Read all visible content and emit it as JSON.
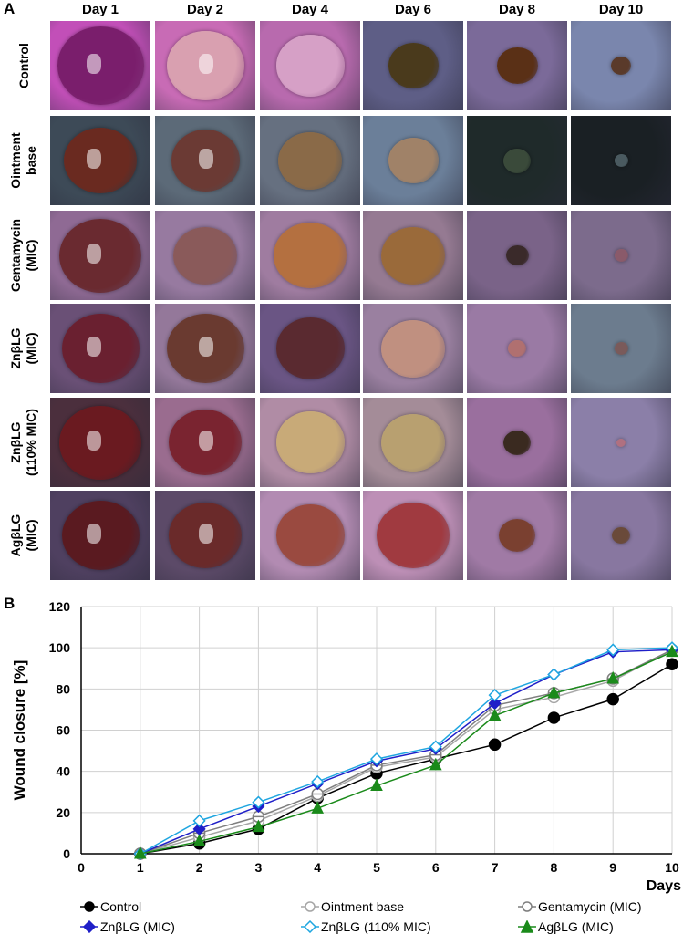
{
  "panel_a": {
    "label": "A",
    "days": [
      "Day 1",
      "Day 2",
      "Day 4",
      "Day 6",
      "Day 8",
      "Day 10"
    ],
    "groups": [
      "Control",
      "Ointment\nbase",
      "Gentamycin\n(MIC)",
      "ZnβLG\n(MIC)",
      "ZnβLG\n(110% MIC)",
      "AgβLG\n(MIC)"
    ],
    "tile_colors": [
      [
        "#c24fb8",
        "#c86bb5",
        "#b86aae",
        "#5e5e86",
        "#7b6a99",
        "#7a86ad"
      ],
      [
        "#3d4a57",
        "#5c6a78",
        "#667080",
        "#6b7f99",
        "#1f2a2a",
        "#1a2024"
      ],
      [
        "#8f6a94",
        "#977aa0",
        "#9f7ca0",
        "#957a92",
        "#7a6388",
        "#7c6b8c"
      ],
      [
        "#6a5076",
        "#94789a",
        "#6a5584",
        "#9a80a0",
        "#9a7aa4",
        "#6c7c8e"
      ],
      [
        "#4b2f3d",
        "#9a6c8f",
        "#b08ca5",
        "#a48c98",
        "#9a6f9e",
        "#8b7fa8"
      ],
      [
        "#4f4060",
        "#5c4a68",
        "#b28bb2",
        "#bd8fb6",
        "#a07aa5",
        "#8877a0"
      ]
    ],
    "wound_colors": [
      [
        "#7a1e6c",
        "#d9a0b0",
        "#d6a0c6",
        "#4a3a1c",
        "#5a3016",
        "#5a3a2a"
      ],
      [
        "#6a2a20",
        "#6b3a34",
        "#8a6a48",
        "#a08268",
        "#3a4a3a",
        "#4a5a60"
      ],
      [
        "#6a2a30",
        "#8a5a5a",
        "#b47040",
        "#9a6a3a",
        "#3a2a2a",
        "#8a5a6a"
      ],
      [
        "#6a2030",
        "#6a3a30",
        "#5a2a30",
        "#c09080",
        "#b07070",
        "#7a5a5a"
      ],
      [
        "#6a1a20",
        "#7a2430",
        "#c8aa78",
        "#b8a070",
        "#3a2a20",
        "#b07080"
      ],
      [
        "#5a1a20",
        "#6a2a2a",
        "#9a4a40",
        "#a03a40",
        "#7a4030",
        "#6a4a3a"
      ]
    ],
    "wound_size": [
      [
        0.95,
        0.85,
        0.75,
        0.55,
        0.45,
        0.22
      ],
      [
        0.8,
        0.75,
        0.7,
        0.55,
        0.3,
        0.15
      ],
      [
        0.9,
        0.7,
        0.8,
        0.7,
        0.25,
        0.15
      ],
      [
        0.85,
        0.85,
        0.75,
        0.7,
        0.2,
        0.15
      ],
      [
        0.9,
        0.8,
        0.75,
        0.7,
        0.3,
        0.1
      ],
      [
        0.85,
        0.8,
        0.75,
        0.8,
        0.4,
        0.2
      ]
    ]
  },
  "panel_b": {
    "label": "B"
  },
  "chart_data": {
    "type": "line",
    "x": [
      1,
      2,
      3,
      4,
      5,
      6,
      7,
      8,
      9,
      10
    ],
    "xlabel": "Days",
    "ylabel": "Wound closure [%]",
    "xlim": [
      0,
      10
    ],
    "ylim": [
      0,
      120
    ],
    "xticks": [
      0,
      1,
      2,
      3,
      4,
      5,
      6,
      7,
      8,
      9,
      10
    ],
    "yticks": [
      0,
      20,
      40,
      60,
      80,
      100,
      120
    ],
    "grid": true,
    "legend_position": "bottom",
    "series": [
      {
        "name": "Control",
        "marker": "circle-filled",
        "color": "#000000",
        "values": [
          0,
          5,
          12,
          27,
          39,
          46,
          53,
          66,
          75,
          92
        ]
      },
      {
        "name": "Ointment base",
        "marker": "circle-open",
        "color": "#a6a6a6",
        "values": [
          0,
          8,
          16,
          28,
          42,
          47,
          70,
          76,
          84,
          99
        ]
      },
      {
        "name": "Gentamycin (MIC)",
        "marker": "circle-open-line",
        "color": "#7f7f7f",
        "values": [
          0,
          10,
          18,
          29,
          43,
          48,
          72,
          78,
          85,
          99
        ]
      },
      {
        "name": "ZnβLG (MIC)",
        "marker": "diamond-filled",
        "color": "#1f1fc8",
        "values": [
          0,
          12,
          23,
          34,
          45,
          51,
          73,
          87,
          98,
          99
        ]
      },
      {
        "name": "ZnβLG (110% MIC)",
        "marker": "diamond-open",
        "color": "#1fa6e0",
        "values": [
          0,
          16,
          25,
          35,
          46,
          52,
          77,
          87,
          99,
          100
        ]
      },
      {
        "name": "AgβLG (MIC)",
        "marker": "triangle-filled",
        "color": "#1a8a1a",
        "values": [
          0,
          6,
          13,
          22,
          33,
          43,
          67,
          78,
          85,
          98
        ]
      }
    ]
  }
}
